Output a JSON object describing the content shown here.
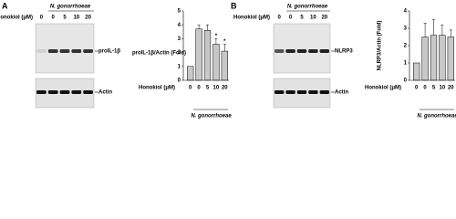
{
  "panels": [
    {
      "label": "A",
      "treatment_label": "N. gonorrhoeae",
      "dose_label": "Honokiol (μM)",
      "lanes": [
        "0",
        "0",
        "5",
        "10",
        "20"
      ],
      "target_label": "proIL-1β",
      "loading_label": "Actin"
    },
    {
      "label": "B",
      "treatment_label": "N. gonorrhoeae",
      "dose_label": "Honokiol (μM)",
      "lanes": [
        "0",
        "0",
        "5",
        "10",
        "20"
      ],
      "target_label": "NLRP3",
      "loading_label": "Actin"
    }
  ],
  "chart_data": [
    {
      "type": "bar",
      "y_label": "proIL-1β/Actin (Fold)",
      "x_label": "Honokiol (μM)",
      "group_label": "N. gonorrhoeae",
      "categories": [
        "0",
        "0",
        "5",
        "10",
        "20"
      ],
      "values": [
        1,
        3.7,
        3.6,
        2.6,
        2.1
      ],
      "errors": [
        null,
        0.3,
        0.4,
        0.4,
        0.5
      ],
      "annotations": [
        null,
        null,
        null,
        "*",
        "*"
      ],
      "color": "#c8c8c8",
      "ylim": [
        0,
        5
      ],
      "yticks": [
        0,
        1,
        2,
        3,
        4,
        5
      ]
    },
    {
      "type": "bar",
      "y_label": "NLRP3/Actin (Fold)",
      "x_label": "Honokiol (μM)",
      "group_label": "N. gonorrhoeae",
      "categories": [
        "0",
        "0",
        "5",
        "10",
        "20"
      ],
      "values": [
        1,
        2.5,
        2.6,
        2.6,
        2.5
      ],
      "errors": [
        null,
        0.8,
        0.9,
        0.6,
        0.4
      ],
      "annotations": [
        null,
        null,
        null,
        null,
        null
      ],
      "color": "#c8c8c8",
      "ylim": [
        0,
        4
      ],
      "yticks": [
        0,
        1,
        2,
        3,
        4
      ]
    }
  ]
}
